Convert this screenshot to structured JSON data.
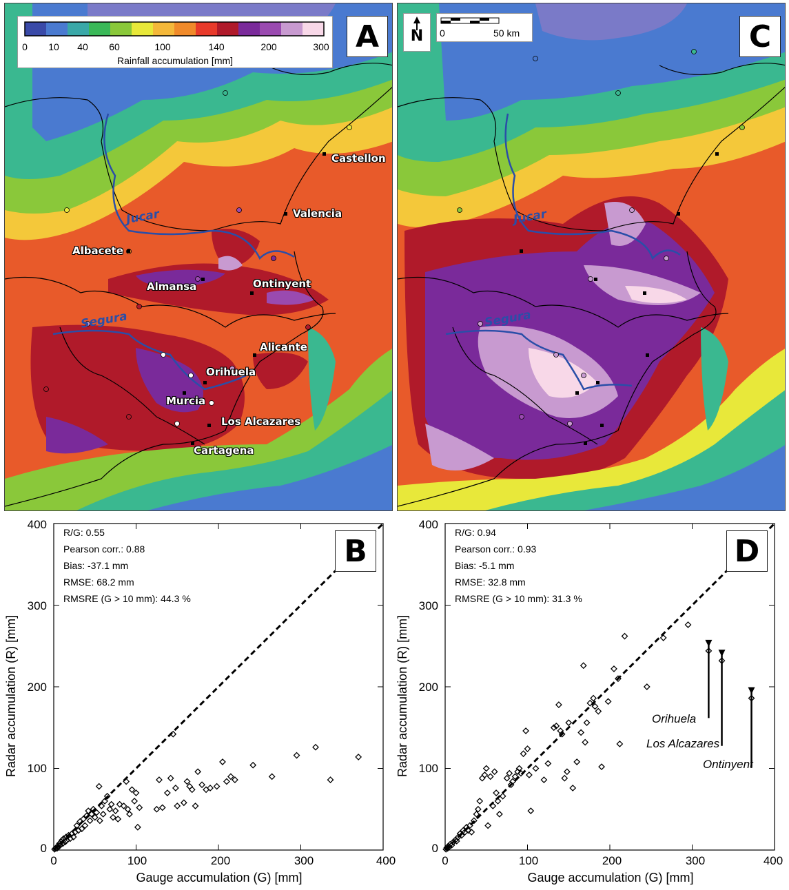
{
  "legend": {
    "title": "Rainfall accumulation [mm]",
    "ticks": [
      "0",
      "10",
      "40",
      "60",
      "100",
      "140",
      "200",
      "300"
    ],
    "colors": [
      "#3a4aa8",
      "#4a7ad0",
      "#3aa8a8",
      "#3ab858",
      "#8ac83a",
      "#e8e83a",
      "#f4b83a",
      "#f08a2a",
      "#e83a2a",
      "#b01a2a",
      "#7a2a9a",
      "#9a4ab0",
      "#c89ad0",
      "#f8d8e8"
    ]
  },
  "scale_bar": {
    "start": "0",
    "end": "50 km",
    "north": "N"
  },
  "panels": {
    "A": {
      "letter": "A"
    },
    "B": {
      "letter": "B"
    },
    "C": {
      "letter": "C"
    },
    "D": {
      "letter": "D"
    }
  },
  "cities": {
    "castellon": "Castellon",
    "valencia": "Valencia",
    "albacete": "Albacete",
    "almansa": "Almansa",
    "ontinyent": "Ontinyent",
    "alicante": "Alicante",
    "orihuela": "Orihuela",
    "murcia": "Murcia",
    "los_alcazares": "Los Alcazares",
    "cartagena": "Cartagena"
  },
  "rivers": {
    "jucar": "Jucar",
    "segura": "Segura"
  },
  "plot_B": {
    "stats": [
      "R/G: 0.55",
      "Pearson corr.: 0.88",
      "Bias: -37.1 mm",
      "RMSE: 68.2 mm",
      "RMSRE (G > 10 mm): 44.3 %"
    ]
  },
  "plot_D": {
    "stats": [
      "R/G: 0.94",
      "Pearson corr.: 0.93",
      "Bias: -5.1 mm",
      "RMSE: 32.8 mm",
      "RMSRE (G > 10 mm): 31.3 %"
    ],
    "annotations": [
      "Orihuela",
      "Los Alcazares",
      "Ontinyent"
    ]
  },
  "axes": {
    "xlabel": "Gauge accumulation (G) [mm]",
    "ylabel": "Radar accumulation (R) [mm]",
    "ticks": [
      "0",
      "100",
      "200",
      "300",
      "400"
    ]
  },
  "chart_data": [
    {
      "type": "scatter",
      "panel": "B",
      "xlabel": "Gauge accumulation (G) [mm]",
      "ylabel": "Radar accumulation (R) [mm]",
      "xlim": [
        0,
        400
      ],
      "ylim": [
        0,
        400
      ],
      "reference_line": "1:1",
      "points": [
        [
          1,
          1
        ],
        [
          2,
          2
        ],
        [
          3,
          3
        ],
        [
          4,
          2
        ],
        [
          5,
          5
        ],
        [
          6,
          4
        ],
        [
          7,
          8
        ],
        [
          8,
          6
        ],
        [
          9,
          10
        ],
        [
          10,
          12
        ],
        [
          11,
          8
        ],
        [
          12,
          14
        ],
        [
          14,
          10
        ],
        [
          15,
          16
        ],
        [
          16,
          12
        ],
        [
          18,
          18
        ],
        [
          20,
          14
        ],
        [
          22,
          20
        ],
        [
          24,
          16
        ],
        [
          26,
          22
        ],
        [
          28,
          30
        ],
        [
          30,
          24
        ],
        [
          32,
          35
        ],
        [
          34,
          26
        ],
        [
          36,
          38
        ],
        [
          38,
          30
        ],
        [
          40,
          42
        ],
        [
          42,
          48
        ],
        [
          44,
          36
        ],
        [
          46,
          44
        ],
        [
          48,
          50
        ],
        [
          50,
          40
        ],
        [
          52,
          46
        ],
        [
          55,
          78
        ],
        [
          56,
          36
        ],
        [
          58,
          54
        ],
        [
          60,
          44
        ],
        [
          62,
          60
        ],
        [
          65,
          66
        ],
        [
          68,
          50
        ],
        [
          70,
          56
        ],
        [
          72,
          40
        ],
        [
          75,
          48
        ],
        [
          78,
          38
        ],
        [
          80,
          56
        ],
        [
          85,
          54
        ],
        [
          88,
          84
        ],
        [
          90,
          50
        ],
        [
          92,
          44
        ],
        [
          95,
          74
        ],
        [
          98,
          60
        ],
        [
          100,
          70
        ],
        [
          102,
          28
        ],
        [
          104,
          52
        ],
        [
          125,
          50
        ],
        [
          128,
          86
        ],
        [
          132,
          52
        ],
        [
          138,
          70
        ],
        [
          142,
          88
        ],
        [
          145,
          142
        ],
        [
          148,
          76
        ],
        [
          150,
          54
        ],
        [
          158,
          58
        ],
        [
          162,
          84
        ],
        [
          165,
          78
        ],
        [
          168,
          74
        ],
        [
          172,
          54
        ],
        [
          175,
          96
        ],
        [
          180,
          80
        ],
        [
          185,
          74
        ],
        [
          190,
          76
        ],
        [
          198,
          78
        ],
        [
          205,
          108
        ],
        [
          210,
          84
        ],
        [
          215,
          90
        ],
        [
          220,
          86
        ],
        [
          242,
          104
        ],
        [
          265,
          90
        ],
        [
          295,
          116
        ],
        [
          318,
          126
        ],
        [
          336,
          86
        ],
        [
          370,
          114
        ]
      ]
    },
    {
      "type": "scatter",
      "panel": "D",
      "xlabel": "Gauge accumulation (G) [mm]",
      "ylabel": "Radar accumulation (R) [mm]",
      "xlim": [
        0,
        400
      ],
      "ylim": [
        0,
        400
      ],
      "reference_line": "1:1",
      "points": [
        [
          1,
          1
        ],
        [
          2,
          3
        ],
        [
          3,
          2
        ],
        [
          4,
          5
        ],
        [
          5,
          4
        ],
        [
          6,
          7
        ],
        [
          8,
          6
        ],
        [
          10,
          10
        ],
        [
          12,
          12
        ],
        [
          14,
          11
        ],
        [
          16,
          16
        ],
        [
          18,
          20
        ],
        [
          20,
          18
        ],
        [
          22,
          24
        ],
        [
          24,
          22
        ],
        [
          26,
          28
        ],
        [
          28,
          24
        ],
        [
          30,
          30
        ],
        [
          32,
          22
        ],
        [
          35,
          36
        ],
        [
          38,
          44
        ],
        [
          40,
          50
        ],
        [
          42,
          60
        ],
        [
          45,
          88
        ],
        [
          48,
          92
        ],
        [
          50,
          100
        ],
        [
          52,
          30
        ],
        [
          55,
          90
        ],
        [
          58,
          54
        ],
        [
          60,
          96
        ],
        [
          62,
          70
        ],
        [
          64,
          60
        ],
        [
          66,
          44
        ],
        [
          70,
          66
        ],
        [
          75,
          88
        ],
        [
          78,
          94
        ],
        [
          80,
          80
        ],
        [
          82,
          84
        ],
        [
          85,
          90
        ],
        [
          88,
          96
        ],
        [
          90,
          100
        ],
        [
          92,
          94
        ],
        [
          95,
          118
        ],
        [
          98,
          146
        ],
        [
          100,
          124
        ],
        [
          102,
          92
        ],
        [
          104,
          48
        ],
        [
          110,
          100
        ],
        [
          120,
          86
        ],
        [
          125,
          106
        ],
        [
          132,
          150
        ],
        [
          135,
          152
        ],
        [
          138,
          178
        ],
        [
          140,
          146
        ],
        [
          142,
          142
        ],
        [
          145,
          88
        ],
        [
          148,
          96
        ],
        [
          150,
          156
        ],
        [
          155,
          76
        ],
        [
          160,
          108
        ],
        [
          165,
          144
        ],
        [
          168,
          226
        ],
        [
          170,
          132
        ],
        [
          172,
          156
        ],
        [
          176,
          180
        ],
        [
          180,
          186
        ],
        [
          182,
          176
        ],
        [
          186,
          170
        ],
        [
          190,
          102
        ],
        [
          198,
          182
        ],
        [
          205,
          222
        ],
        [
          210,
          210
        ],
        [
          212,
          130
        ],
        [
          218,
          262
        ],
        [
          245,
          200
        ],
        [
          265,
          260
        ],
        [
          295,
          276
        ],
        [
          320,
          244
        ],
        [
          336,
          232
        ],
        [
          372,
          186
        ]
      ]
    }
  ]
}
